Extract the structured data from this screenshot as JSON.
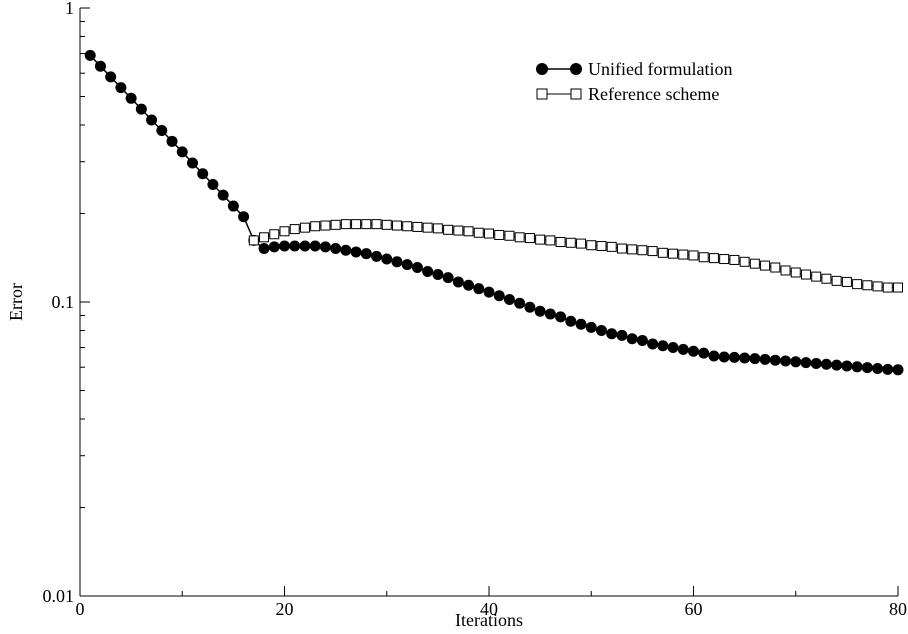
{
  "chart_data": {
    "type": "line",
    "title": "",
    "xlabel": "Iterations",
    "ylabel": "Error",
    "xlim": [
      0,
      80
    ],
    "ylim": [
      0.01,
      1
    ],
    "yscale": "log",
    "grid": false,
    "legend_position": "top-right",
    "x_ticks": [
      0,
      20,
      40,
      60,
      80
    ],
    "x_tick_labels": [
      "0",
      "20",
      "40",
      "60",
      "80"
    ],
    "y_ticks": [
      0.01,
      0.1,
      1
    ],
    "y_tick_labels": [
      "0.01",
      "0.1",
      "1"
    ],
    "series": [
      {
        "name": "Unified formulation",
        "marker": "filled-circle",
        "color": "#000000",
        "x": [
          1,
          2,
          3,
          4,
          5,
          6,
          7,
          8,
          9,
          10,
          11,
          12,
          13,
          14,
          15,
          16,
          17,
          18,
          19,
          20,
          21,
          22,
          23,
          24,
          25,
          26,
          27,
          28,
          29,
          30,
          31,
          32,
          33,
          34,
          35,
          36,
          37,
          38,
          39,
          40,
          41,
          42,
          43,
          44,
          45,
          46,
          47,
          48,
          49,
          50,
          51,
          52,
          53,
          54,
          55,
          56,
          57,
          58,
          59,
          60,
          61,
          62,
          63,
          64,
          65,
          66,
          67,
          68,
          69,
          70,
          71,
          72,
          73,
          74,
          75,
          76,
          77,
          78,
          79,
          80
        ],
        "y": [
          0.69,
          0.634,
          0.583,
          0.536,
          0.493,
          0.453,
          0.416,
          0.383,
          0.352,
          0.324,
          0.297,
          0.273,
          0.251,
          0.231,
          0.212,
          0.195,
          0.162,
          0.152,
          0.154,
          0.155,
          0.155,
          0.155,
          0.155,
          0.154,
          0.152,
          0.15,
          0.148,
          0.146,
          0.143,
          0.14,
          0.137,
          0.134,
          0.131,
          0.127,
          0.124,
          0.121,
          0.117,
          0.114,
          0.111,
          0.108,
          0.105,
          0.102,
          0.099,
          0.096,
          0.093,
          0.091,
          0.089,
          0.086,
          0.084,
          0.082,
          0.08,
          0.078,
          0.077,
          0.075,
          0.074,
          0.072,
          0.071,
          0.07,
          0.069,
          0.068,
          0.067,
          0.0655,
          0.065,
          0.0648,
          0.0645,
          0.0642,
          0.0638,
          0.0634,
          0.063,
          0.0626,
          0.0622,
          0.0618,
          0.0614,
          0.061,
          0.0606,
          0.0602,
          0.0598,
          0.0594,
          0.059,
          0.0588
        ]
      },
      {
        "name": "Reference scheme",
        "marker": "open-square",
        "color": "#000000",
        "x": [
          17,
          18,
          19,
          20,
          21,
          22,
          23,
          24,
          25,
          26,
          27,
          28,
          29,
          30,
          31,
          32,
          33,
          34,
          35,
          36,
          37,
          38,
          39,
          40,
          41,
          42,
          43,
          44,
          45,
          46,
          47,
          48,
          49,
          50,
          51,
          52,
          53,
          54,
          55,
          56,
          57,
          58,
          59,
          60,
          61,
          62,
          63,
          64,
          65,
          66,
          67,
          68,
          69,
          70,
          71,
          72,
          73,
          74,
          75,
          76,
          77,
          78,
          79,
          80
        ],
        "y": [
          0.162,
          0.166,
          0.17,
          0.174,
          0.177,
          0.179,
          0.181,
          0.182,
          0.183,
          0.184,
          0.184,
          0.184,
          0.184,
          0.183,
          0.182,
          0.181,
          0.18,
          0.179,
          0.178,
          0.176,
          0.175,
          0.174,
          0.172,
          0.171,
          0.169,
          0.168,
          0.166,
          0.165,
          0.163,
          0.162,
          0.16,
          0.159,
          0.158,
          0.156,
          0.155,
          0.154,
          0.152,
          0.151,
          0.15,
          0.149,
          0.147,
          0.146,
          0.145,
          0.144,
          0.142,
          0.141,
          0.14,
          0.139,
          0.137,
          0.135,
          0.133,
          0.131,
          0.128,
          0.126,
          0.124,
          0.122,
          0.12,
          0.118,
          0.117,
          0.115,
          0.114,
          0.113,
          0.112,
          0.112
        ]
      }
    ]
  }
}
